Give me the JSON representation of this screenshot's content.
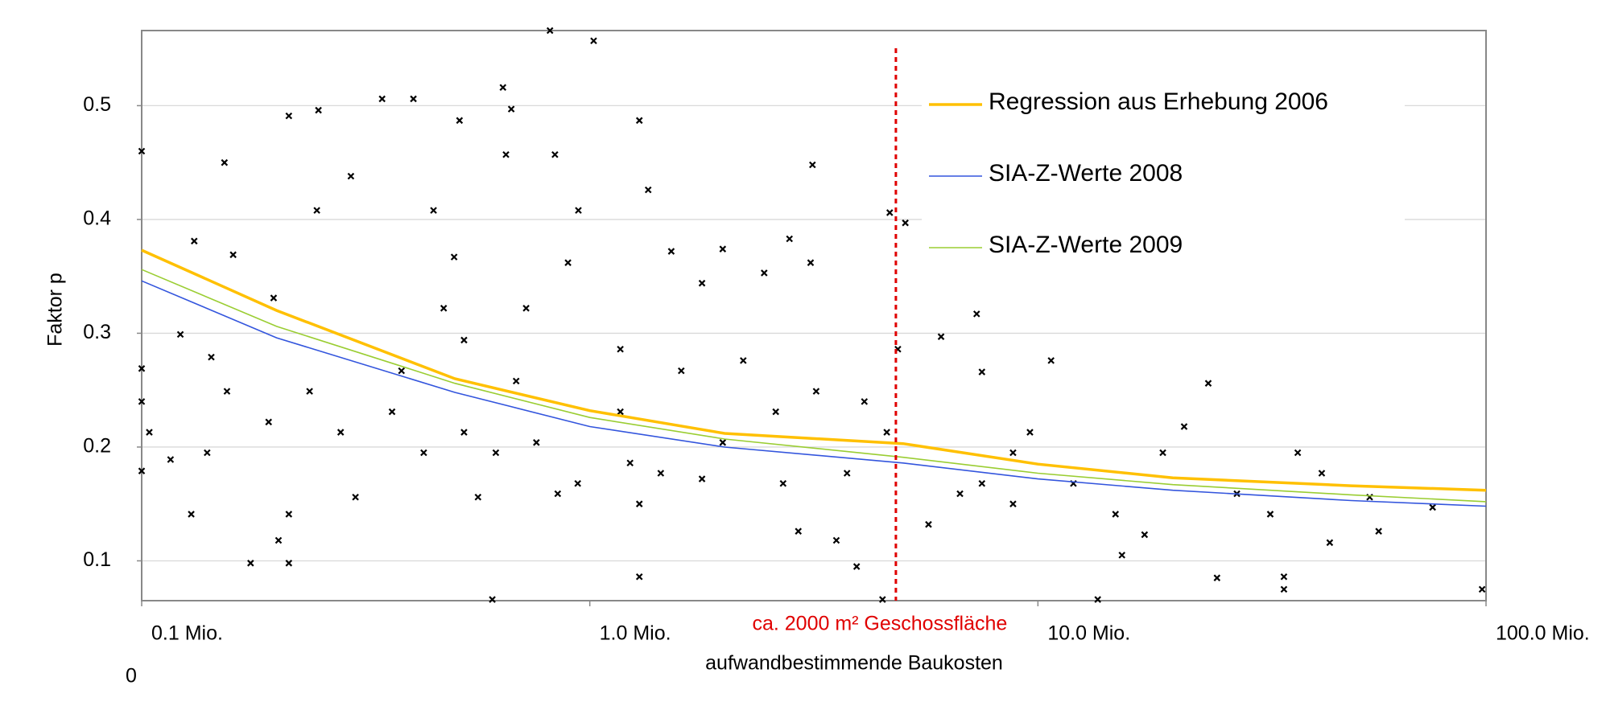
{
  "chart_data": {
    "type": "scatter",
    "y_label": "Faktor p",
    "x_label": "aufwandbestimmende Baukosten",
    "corner_label": "0",
    "log_x": true,
    "grid": true,
    "legend_position": "upper right",
    "xlim": [
      0.1,
      100
    ],
    "ylim": [
      0.065,
      0.566
    ],
    "xticks": [
      {
        "value": 0.1,
        "label": "0.1 Mio."
      },
      {
        "value": 1,
        "label": "1.0 Mio."
      },
      {
        "value": 10,
        "label": "10.0 Mio."
      },
      {
        "value": 100,
        "label": "100.0 Mio."
      }
    ],
    "yticks": [
      0.1,
      0.2,
      0.3,
      0.4,
      0.5
    ],
    "reference_line": {
      "x": 4.82,
      "label": "ca. 2000 m² Geschossfläche",
      "color": "#e00000"
    },
    "series": [
      {
        "name": "Regression aus Erhebung 2006",
        "kind": "line",
        "color": "#ffc000",
        "x": [
          0.1,
          0.2,
          0.5,
          1,
          2,
          5,
          10,
          20,
          50,
          100
        ],
        "values": [
          0.373,
          0.32,
          0.26,
          0.232,
          0.212,
          0.203,
          0.185,
          0.173,
          0.166,
          0.162
        ]
      },
      {
        "name": "SIA-Z-Werte 2008",
        "kind": "line",
        "color": "#3355dd",
        "x": [
          0.1,
          0.2,
          0.5,
          1,
          2,
          5,
          10,
          20,
          50,
          100
        ],
        "values": [
          0.346,
          0.296,
          0.248,
          0.218,
          0.2,
          0.186,
          0.172,
          0.162,
          0.153,
          0.148
        ]
      },
      {
        "name": "SIA-Z-Werte 2009",
        "kind": "line",
        "color": "#9acd32",
        "x": [
          0.1,
          0.2,
          0.5,
          1,
          2,
          5,
          10,
          20,
          50,
          100
        ],
        "values": [
          0.356,
          0.306,
          0.256,
          0.226,
          0.207,
          0.191,
          0.177,
          0.167,
          0.158,
          0.152
        ]
      },
      {
        "kind": "scatter",
        "color": "#000000",
        "marker": "x",
        "x": [
          0.1,
          0.1,
          0.1,
          0.1,
          0.104,
          0.116,
          0.122,
          0.129,
          0.131,
          0.143,
          0.153,
          0.16,
          0.175,
          0.197,
          0.202,
          0.213,
          0.213,
          0.248,
          0.246,
          0.293,
          0.3,
          0.344,
          0.404,
          0.448,
          0.512,
          0.498,
          0.563,
          0.606,
          0.64,
          0.668,
          0.65,
          0.815,
          1.02,
          0.836,
          1.29,
          1.35,
          1.29,
          0.721,
          0.894,
          0.943,
          1.17,
          1.23,
          1.52,
          1.98,
          1.78,
          2.45,
          2.79,
          3.14,
          3.11,
          2.92,
          3.55,
          3.94,
          4.5,
          4.67,
          5.06,
          4.87,
          6.08,
          7.3,
          7.5,
          10.7,
          13.6,
          15.4,
          24.0,
          25.1,
          35.4,
          35.4,
          44.8,
          57.6,
          76,
          98,
          55,
          21.2,
          38,
          9.6,
          7.5,
          5.7,
          0.524,
          0.617,
          0.76,
          0.94,
          1.44,
          1.98,
          2.7,
          3.75,
          0.426,
          0.362,
          0.38,
          0.685,
          0.524,
          0.472,
          1.17,
          1.6,
          2.2,
          0.848,
          1.29,
          1.78,
          6.7,
          8.8,
          12,
          14.9,
          17.3,
          27.8,
          33,
          43,
          19,
          8.8,
          4.6,
          4.1,
          3.2,
          2.6,
          0.237,
          0.278,
          0.213,
          0.192,
          0.155,
          0.14
        ],
        "values": [
          0.46,
          0.269,
          0.24,
          0.179,
          0.213,
          0.189,
          0.299,
          0.141,
          0.381,
          0.279,
          0.45,
          0.369,
          0.098,
          0.331,
          0.118,
          0.098,
          0.491,
          0.496,
          0.408,
          0.438,
          0.156,
          0.506,
          0.506,
          0.408,
          0.487,
          0.367,
          0.156,
          0.066,
          0.516,
          0.497,
          0.457,
          0.566,
          0.557,
          0.457,
          0.487,
          0.426,
          0.086,
          0.322,
          0.362,
          0.408,
          0.231,
          0.186,
          0.372,
          0.374,
          0.344,
          0.353,
          0.383,
          0.448,
          0.362,
          0.126,
          0.118,
          0.095,
          0.066,
          0.406,
          0.397,
          0.286,
          0.297,
          0.317,
          0.266,
          0.276,
          0.066,
          0.105,
          0.256,
          0.085,
          0.075,
          0.086,
          0.116,
          0.126,
          0.147,
          0.075,
          0.156,
          0.218,
          0.195,
          0.213,
          0.168,
          0.132,
          0.213,
          0.195,
          0.204,
          0.168,
          0.177,
          0.204,
          0.168,
          0.177,
          0.195,
          0.231,
          0.267,
          0.258,
          0.294,
          0.322,
          0.286,
          0.267,
          0.276,
          0.159,
          0.15,
          0.172,
          0.159,
          0.15,
          0.168,
          0.141,
          0.123,
          0.159,
          0.141,
          0.177,
          0.195,
          0.195,
          0.213,
          0.24,
          0.249,
          0.231,
          0.249,
          0.213,
          0.141,
          0.222,
          0.249,
          0.195
        ]
      }
    ]
  }
}
